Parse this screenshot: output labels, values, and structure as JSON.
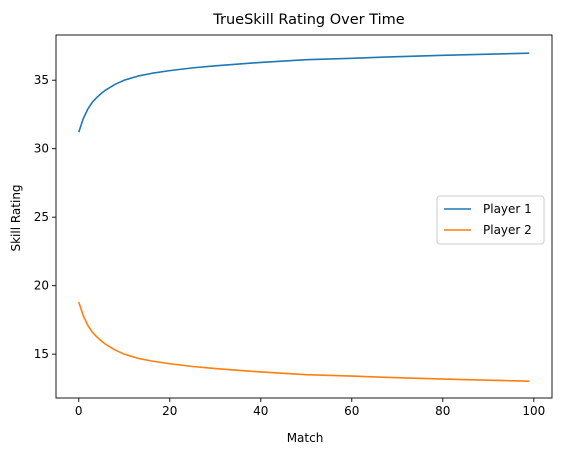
{
  "chart_data": {
    "type": "line",
    "title": "TrueSkill Rating Over Time",
    "xlabel": "Match",
    "ylabel": "Skill Rating",
    "xlim": [
      -5,
      104
    ],
    "ylim": [
      11.8,
      38.3
    ],
    "xticks": [
      0,
      20,
      40,
      60,
      80,
      100
    ],
    "yticks": [
      15,
      20,
      25,
      30,
      35
    ],
    "legend_position": "center-right",
    "grid": false,
    "series": [
      {
        "name": "Player 1",
        "color": "#1f77b4",
        "x": [
          0,
          1,
          2,
          3,
          4,
          5,
          6,
          8,
          10,
          13,
          16,
          20,
          25,
          30,
          40,
          50,
          60,
          70,
          80,
          90,
          99
        ],
        "y": [
          31.2,
          32.2,
          32.9,
          33.4,
          33.75,
          34.05,
          34.3,
          34.7,
          35.0,
          35.3,
          35.5,
          35.7,
          35.9,
          36.05,
          36.3,
          36.5,
          36.6,
          36.72,
          36.82,
          36.9,
          36.97
        ]
      },
      {
        "name": "Player 2",
        "color": "#ff7f0e",
        "x": [
          0,
          1,
          2,
          3,
          4,
          5,
          6,
          8,
          10,
          13,
          16,
          20,
          25,
          30,
          40,
          50,
          60,
          70,
          80,
          90,
          99
        ],
        "y": [
          18.8,
          17.8,
          17.1,
          16.6,
          16.25,
          15.95,
          15.7,
          15.3,
          15.0,
          14.7,
          14.5,
          14.3,
          14.1,
          13.95,
          13.7,
          13.5,
          13.4,
          13.28,
          13.18,
          13.1,
          13.03
        ]
      }
    ]
  }
}
